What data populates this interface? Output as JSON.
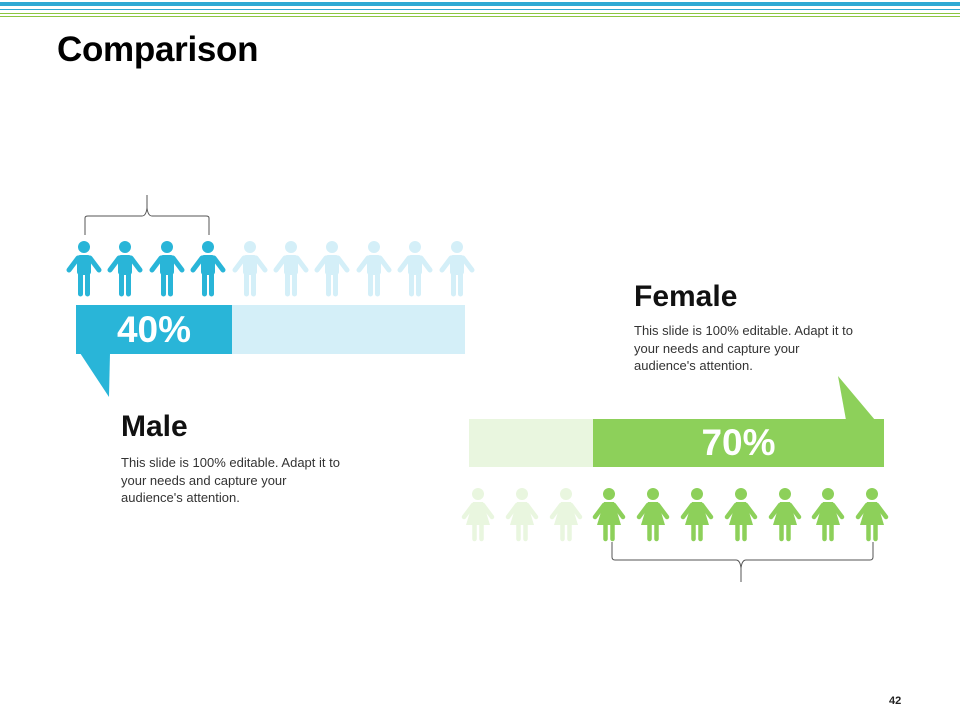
{
  "slide": {
    "title": "Comparison",
    "page_number": "42"
  },
  "colors": {
    "male": "#29b5d8",
    "male_light": "#d4eff8",
    "female": "#8dd05a",
    "female_light": "#e9f6df",
    "top_line_blue": "#2fa9d4",
    "top_line_green": "#8cc63f"
  },
  "male": {
    "percent_label": "40%",
    "percent": 40,
    "heading": "Male",
    "description": "This slide is 100% editable. Adapt it to your needs and capture your audience's attention.",
    "icon": "man-icon",
    "highlighted_count": 4,
    "total_count": 10
  },
  "female": {
    "percent_label": "70%",
    "percent": 70,
    "heading": "Female",
    "description": "This slide is 100% editable. Adapt it to your needs and capture your audience's attention.",
    "icon": "woman-icon",
    "highlighted_count": 7,
    "total_count": 10
  }
}
